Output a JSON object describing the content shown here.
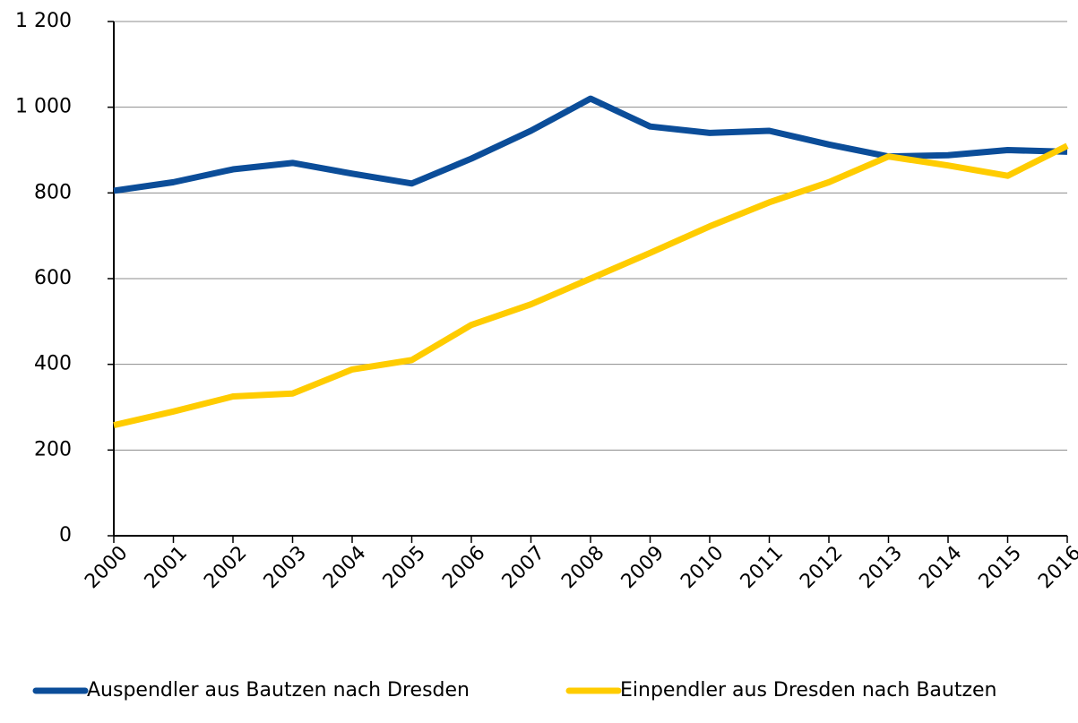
{
  "chart_data": {
    "type": "line",
    "categories": [
      "2000",
      "2001",
      "2002",
      "2003",
      "2004",
      "2005",
      "2006",
      "2007",
      "2008",
      "2009",
      "2010",
      "2011",
      "2012",
      "2013",
      "2014",
      "2015",
      "2016"
    ],
    "series": [
      {
        "name": "Auspendler aus Bautzen nach Dresden",
        "color": "#0b4d99",
        "values": [
          805,
          825,
          855,
          870,
          845,
          822,
          880,
          945,
          1020,
          955,
          940,
          945,
          913,
          885,
          888,
          900,
          896
        ]
      },
      {
        "name": "Einpendler aus Dresden nach Bautzen",
        "color": "#ffcc00",
        "values": [
          258,
          290,
          325,
          332,
          388,
          410,
          492,
          540,
          600,
          660,
          722,
          778,
          825,
          885,
          864,
          840,
          910
        ]
      }
    ],
    "ylim": [
      0,
      1200
    ],
    "yticks": [
      0,
      200,
      400,
      600,
      800,
      {
        "value": 1000,
        "label": "1 000"
      },
      {
        "value": 1200,
        "label": "1 200"
      }
    ],
    "grid": true,
    "legend": "bottom"
  }
}
